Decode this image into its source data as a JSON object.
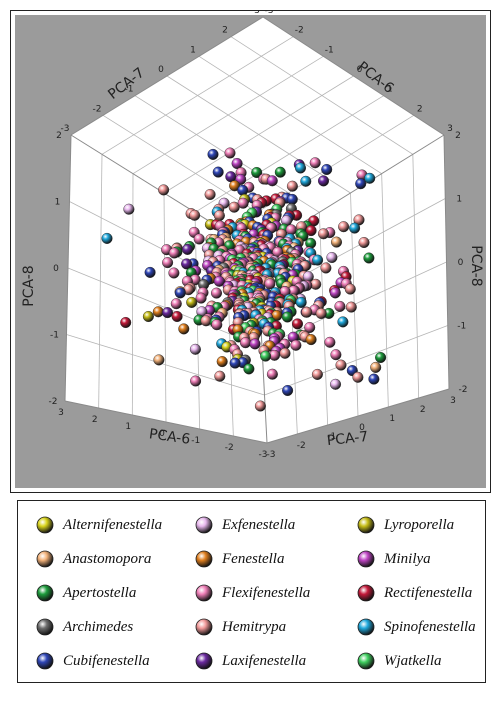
{
  "chart_data": {
    "type": "scatter",
    "subtype": "3d-scatter",
    "title": "",
    "background": "#9b9b9b",
    "axes": {
      "top_left": {
        "label": "PCA-7",
        "ticks": [
          "-3",
          "-2",
          "-1",
          "0",
          "1",
          "2",
          "3"
        ]
      },
      "top_right": {
        "label": "PCA-6",
        "ticks": [
          "-3",
          "-2",
          "-1",
          "0",
          "1",
          "2",
          "3"
        ]
      },
      "left_vertical": {
        "label": "PCA-8",
        "ticks": [
          "-2",
          "-1",
          "0",
          "1",
          "2"
        ]
      },
      "right_vertical": {
        "label": "PCA-8",
        "ticks": [
          "-2",
          "-1",
          "0",
          "1",
          "2"
        ]
      },
      "bottom_left": {
        "label": "PCA-6",
        "ticks": [
          "3",
          "2",
          "1",
          "0",
          "-1",
          "-2",
          "-3"
        ]
      },
      "bottom_right": {
        "label": "PCA-7",
        "ticks": [
          "-3",
          "-2",
          "-1",
          "0",
          "1",
          "2",
          "3"
        ]
      }
    },
    "series": [
      {
        "name": "Alternifenestella",
        "color": "#d9d41c"
      },
      {
        "name": "Exfenestella",
        "color": "#e8b8ee"
      },
      {
        "name": "Lyroporella",
        "color": "#c6bd18"
      },
      {
        "name": "Anastomopora",
        "color": "#f3b27a"
      },
      {
        "name": "Fenestella",
        "color": "#e07f1e"
      },
      {
        "name": "Minilya",
        "color": "#bf45c4"
      },
      {
        "name": "Apertostella",
        "color": "#1e9d3d"
      },
      {
        "name": "Flexifenestella",
        "color": "#f07fb8"
      },
      {
        "name": "Rectifenestella",
        "color": "#c41a3a"
      },
      {
        "name": "Archimedes",
        "color": "#6e6e6e"
      },
      {
        "name": "Hemitrypa",
        "color": "#f29a9a"
      },
      {
        "name": "Spinofenestella",
        "color": "#1fa9dd"
      },
      {
        "name": "Cubifenestella",
        "color": "#2f46b8"
      },
      {
        "name": "Laxifenestella",
        "color": "#6b2aa0"
      },
      {
        "name": "Wjatkella",
        "color": "#3fcf5f"
      }
    ]
  }
}
